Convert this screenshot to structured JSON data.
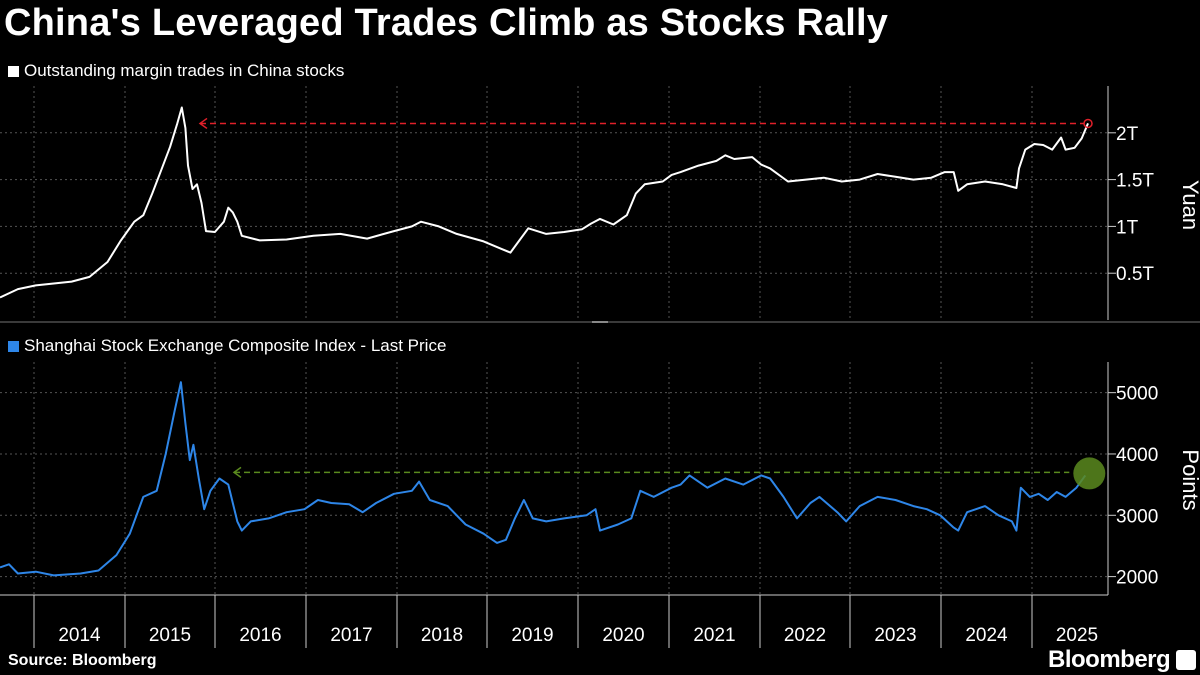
{
  "title": "China's Leveraged Trades Climb as Stocks Rally",
  "source": "Source: Bloomberg",
  "brand": "Bloomberg",
  "colors": {
    "margin": "#ffffff",
    "index": "#2e86e8",
    "margin_marker": "#e0202a",
    "index_marker": "#5a8a1e",
    "grid": "#555555"
  },
  "chart_data": [
    {
      "type": "line",
      "series_name": "Outstanding margin trades in China stocks",
      "ylabel": "Yuan",
      "ylim": [
        0,
        2.5
      ],
      "yticks": [
        {
          "v": 0.5,
          "label": "0.5T"
        },
        {
          "v": 1,
          "label": "1T"
        },
        {
          "v": 1.5,
          "label": "1.5T"
        },
        {
          "v": 2,
          "label": "2T"
        }
      ],
      "xlim": [
        2013.4,
        2025.55
      ],
      "reference_value": 2.1,
      "points": [
        [
          2013.4,
          0.24
        ],
        [
          2013.6,
          0.33
        ],
        [
          2013.8,
          0.37
        ],
        [
          2014.0,
          0.39
        ],
        [
          2014.2,
          0.41
        ],
        [
          2014.4,
          0.46
        ],
        [
          2014.6,
          0.62
        ],
        [
          2014.75,
          0.85
        ],
        [
          2014.9,
          1.05
        ],
        [
          2015.0,
          1.12
        ],
        [
          2015.1,
          1.35
        ],
        [
          2015.2,
          1.6
        ],
        [
          2015.3,
          1.85
        ],
        [
          2015.38,
          2.1
        ],
        [
          2015.43,
          2.27
        ],
        [
          2015.47,
          2.05
        ],
        [
          2015.5,
          1.65
        ],
        [
          2015.55,
          1.4
        ],
        [
          2015.6,
          1.45
        ],
        [
          2015.65,
          1.25
        ],
        [
          2015.7,
          0.95
        ],
        [
          2015.8,
          0.94
        ],
        [
          2015.9,
          1.05
        ],
        [
          2015.95,
          1.2
        ],
        [
          2016.0,
          1.15
        ],
        [
          2016.05,
          1.05
        ],
        [
          2016.1,
          0.9
        ],
        [
          2016.3,
          0.85
        ],
        [
          2016.6,
          0.86
        ],
        [
          2016.9,
          0.9
        ],
        [
          2017.2,
          0.92
        ],
        [
          2017.5,
          0.87
        ],
        [
          2017.8,
          0.95
        ],
        [
          2018.0,
          1.0
        ],
        [
          2018.1,
          1.05
        ],
        [
          2018.3,
          1.0
        ],
        [
          2018.5,
          0.92
        ],
        [
          2018.8,
          0.84
        ],
        [
          2019.0,
          0.76
        ],
        [
          2019.1,
          0.72
        ],
        [
          2019.2,
          0.85
        ],
        [
          2019.3,
          0.98
        ],
        [
          2019.5,
          0.92
        ],
        [
          2019.7,
          0.94
        ],
        [
          2019.9,
          0.97
        ],
        [
          2020.0,
          1.03
        ],
        [
          2020.1,
          1.08
        ],
        [
          2020.25,
          1.02
        ],
        [
          2020.4,
          1.12
        ],
        [
          2020.5,
          1.35
        ],
        [
          2020.6,
          1.45
        ],
        [
          2020.8,
          1.48
        ],
        [
          2020.9,
          1.55
        ],
        [
          2021.0,
          1.58
        ],
        [
          2021.2,
          1.65
        ],
        [
          2021.4,
          1.7
        ],
        [
          2021.5,
          1.76
        ],
        [
          2021.6,
          1.72
        ],
        [
          2021.8,
          1.74
        ],
        [
          2021.9,
          1.66
        ],
        [
          2022.0,
          1.62
        ],
        [
          2022.2,
          1.48
        ],
        [
          2022.4,
          1.5
        ],
        [
          2022.6,
          1.52
        ],
        [
          2022.8,
          1.48
        ],
        [
          2023.0,
          1.5
        ],
        [
          2023.2,
          1.56
        ],
        [
          2023.4,
          1.53
        ],
        [
          2023.6,
          1.5
        ],
        [
          2023.8,
          1.52
        ],
        [
          2023.95,
          1.58
        ],
        [
          2024.05,
          1.58
        ],
        [
          2024.1,
          1.38
        ],
        [
          2024.2,
          1.45
        ],
        [
          2024.4,
          1.48
        ],
        [
          2024.6,
          1.45
        ],
        [
          2024.75,
          1.41
        ],
        [
          2024.78,
          1.62
        ],
        [
          2024.85,
          1.82
        ],
        [
          2024.95,
          1.88
        ],
        [
          2025.05,
          1.87
        ],
        [
          2025.15,
          1.82
        ],
        [
          2025.25,
          1.95
        ],
        [
          2025.3,
          1.82
        ],
        [
          2025.4,
          1.84
        ],
        [
          2025.48,
          1.94
        ],
        [
          2025.55,
          2.1
        ]
      ]
    },
    {
      "type": "line",
      "series_name": "Shanghai Stock Exchange Composite Index - Last Price",
      "ylabel": "Points",
      "ylim": [
        1700,
        5500
      ],
      "yticks": [
        {
          "v": 2000,
          "label": "2000"
        },
        {
          "v": 3000,
          "label": "3000"
        },
        {
          "v": 4000,
          "label": "4000"
        },
        {
          "v": 5000,
          "label": "5000"
        }
      ],
      "xlim": [
        2013.4,
        2025.55
      ],
      "reference_value": 3700,
      "points": [
        [
          2013.4,
          2150
        ],
        [
          2013.5,
          2200
        ],
        [
          2013.6,
          2050
        ],
        [
          2013.8,
          2080
        ],
        [
          2014.0,
          2020
        ],
        [
          2014.3,
          2050
        ],
        [
          2014.5,
          2100
        ],
        [
          2014.7,
          2350
        ],
        [
          2014.85,
          2700
        ],
        [
          2015.0,
          3300
        ],
        [
          2015.15,
          3400
        ],
        [
          2015.25,
          4000
        ],
        [
          2015.35,
          4700
        ],
        [
          2015.42,
          5170
        ],
        [
          2015.47,
          4500
        ],
        [
          2015.52,
          3900
        ],
        [
          2015.56,
          4150
        ],
        [
          2015.62,
          3600
        ],
        [
          2015.68,
          3100
        ],
        [
          2015.75,
          3400
        ],
        [
          2015.85,
          3600
        ],
        [
          2015.95,
          3500
        ],
        [
          2016.05,
          2900
        ],
        [
          2016.1,
          2750
        ],
        [
          2016.2,
          2900
        ],
        [
          2016.4,
          2950
        ],
        [
          2016.6,
          3050
        ],
        [
          2016.8,
          3100
        ],
        [
          2016.95,
          3250
        ],
        [
          2017.1,
          3200
        ],
        [
          2017.3,
          3180
        ],
        [
          2017.45,
          3050
        ],
        [
          2017.6,
          3200
        ],
        [
          2017.8,
          3350
        ],
        [
          2018.0,
          3400
        ],
        [
          2018.08,
          3550
        ],
        [
          2018.2,
          3250
        ],
        [
          2018.4,
          3150
        ],
        [
          2018.6,
          2850
        ],
        [
          2018.8,
          2700
        ],
        [
          2018.95,
          2550
        ],
        [
          2019.05,
          2600
        ],
        [
          2019.15,
          2950
        ],
        [
          2019.25,
          3250
        ],
        [
          2019.35,
          2950
        ],
        [
          2019.5,
          2900
        ],
        [
          2019.7,
          2950
        ],
        [
          2019.95,
          3000
        ],
        [
          2020.05,
          3100
        ],
        [
          2020.1,
          2750
        ],
        [
          2020.3,
          2850
        ],
        [
          2020.45,
          2950
        ],
        [
          2020.55,
          3400
        ],
        [
          2020.7,
          3300
        ],
        [
          2020.9,
          3450
        ],
        [
          2021.0,
          3500
        ],
        [
          2021.1,
          3650
        ],
        [
          2021.3,
          3450
        ],
        [
          2021.5,
          3600
        ],
        [
          2021.7,
          3500
        ],
        [
          2021.9,
          3650
        ],
        [
          2022.0,
          3600
        ],
        [
          2022.15,
          3300
        ],
        [
          2022.3,
          2950
        ],
        [
          2022.45,
          3200
        ],
        [
          2022.55,
          3300
        ],
        [
          2022.75,
          3050
        ],
        [
          2022.85,
          2900
        ],
        [
          2023.0,
          3150
        ],
        [
          2023.2,
          3300
        ],
        [
          2023.4,
          3250
        ],
        [
          2023.6,
          3150
        ],
        [
          2023.75,
          3100
        ],
        [
          2023.9,
          3000
        ],
        [
          2024.05,
          2800
        ],
        [
          2024.1,
          2750
        ],
        [
          2024.2,
          3050
        ],
        [
          2024.4,
          3150
        ],
        [
          2024.55,
          3000
        ],
        [
          2024.7,
          2900
        ],
        [
          2024.75,
          2750
        ],
        [
          2024.8,
          3450
        ],
        [
          2024.9,
          3300
        ],
        [
          2025.0,
          3350
        ],
        [
          2025.1,
          3250
        ],
        [
          2025.2,
          3380
        ],
        [
          2025.3,
          3300
        ],
        [
          2025.42,
          3450
        ],
        [
          2025.52,
          3650
        ]
      ]
    }
  ],
  "x_axis": {
    "years": [
      "2014",
      "2015",
      "2016",
      "2017",
      "2018",
      "2019",
      "2020",
      "2021",
      "2022",
      "2023",
      "2024",
      "2025"
    ]
  }
}
